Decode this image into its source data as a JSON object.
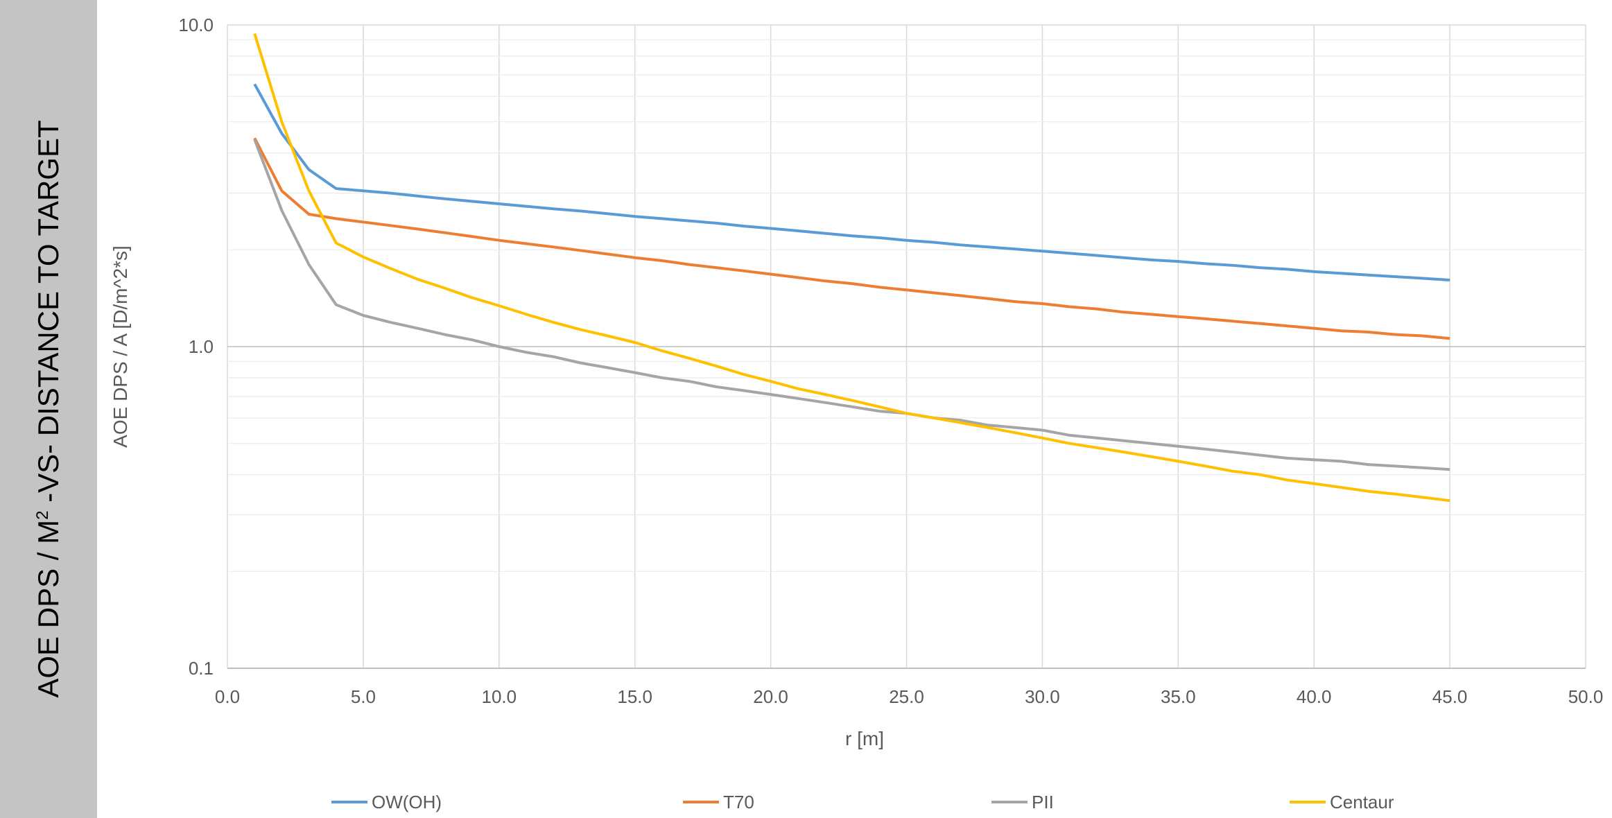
{
  "side_title": {
    "prefix": "AOE DPS / M",
    "sup": "2",
    "suffix": " -VS- DISTANCE TO TARGET"
  },
  "chart_data": {
    "type": "line",
    "title": "",
    "xlabel": "r [m]",
    "ylabel": "AOE DPS / A [D/m^2*s]",
    "xlim": [
      0,
      50
    ],
    "ylim": [
      0.1,
      10
    ],
    "y_scale": "log",
    "x_ticks": [
      "0.0",
      "5.0",
      "10.0",
      "15.0",
      "20.0",
      "25.0",
      "30.0",
      "35.0",
      "40.0",
      "45.0",
      "50.0"
    ],
    "y_ticks": [
      "0.1",
      "1.0",
      "10.0"
    ],
    "grid": true,
    "legend_position": "bottom",
    "x": [
      1,
      2,
      3,
      4,
      5,
      6,
      7,
      8,
      9,
      10,
      11,
      12,
      13,
      14,
      15,
      16,
      17,
      18,
      19,
      20,
      21,
      22,
      23,
      24,
      25,
      26,
      27,
      28,
      29,
      30,
      31,
      32,
      33,
      34,
      35,
      36,
      37,
      38,
      39,
      40,
      41,
      42,
      43,
      44,
      45
    ],
    "series": [
      {
        "name": "OW(OH)",
        "color": "#5b9bd5",
        "values": [
          6.55,
          4.6,
          3.55,
          3.1,
          3.05,
          3.0,
          2.94,
          2.88,
          2.83,
          2.78,
          2.73,
          2.68,
          2.64,
          2.59,
          2.54,
          2.5,
          2.46,
          2.42,
          2.37,
          2.33,
          2.29,
          2.25,
          2.21,
          2.18,
          2.14,
          2.11,
          2.07,
          2.04,
          2.01,
          1.98,
          1.95,
          1.92,
          1.89,
          1.86,
          1.84,
          1.81,
          1.79,
          1.76,
          1.74,
          1.71,
          1.69,
          1.67,
          1.65,
          1.63,
          1.61
        ]
      },
      {
        "name": "T70",
        "color": "#ed7d31",
        "values": [
          4.45,
          3.05,
          2.58,
          2.5,
          2.44,
          2.38,
          2.32,
          2.26,
          2.2,
          2.14,
          2.09,
          2.04,
          1.99,
          1.94,
          1.89,
          1.85,
          1.8,
          1.76,
          1.72,
          1.68,
          1.64,
          1.6,
          1.57,
          1.53,
          1.5,
          1.47,
          1.44,
          1.41,
          1.38,
          1.36,
          1.33,
          1.31,
          1.28,
          1.26,
          1.24,
          1.22,
          1.2,
          1.18,
          1.16,
          1.14,
          1.12,
          1.11,
          1.09,
          1.08,
          1.06
        ]
      },
      {
        "name": "PII",
        "color": "#a5a5a5",
        "values": [
          4.4,
          2.65,
          1.8,
          1.35,
          1.25,
          1.19,
          1.14,
          1.09,
          1.05,
          1.0,
          0.96,
          0.93,
          0.89,
          0.86,
          0.83,
          0.8,
          0.78,
          0.75,
          0.73,
          0.71,
          0.69,
          0.67,
          0.65,
          0.63,
          0.62,
          0.6,
          0.59,
          0.57,
          0.56,
          0.55,
          0.53,
          0.52,
          0.51,
          0.5,
          0.49,
          0.48,
          0.47,
          0.46,
          0.45,
          0.445,
          0.44,
          0.43,
          0.425,
          0.42,
          0.415
        ]
      },
      {
        "name": "Centaur",
        "color": "#ffc000",
        "values": [
          9.4,
          5.0,
          3.05,
          2.1,
          1.9,
          1.75,
          1.62,
          1.52,
          1.42,
          1.34,
          1.26,
          1.19,
          1.13,
          1.08,
          1.03,
          0.97,
          0.92,
          0.87,
          0.82,
          0.78,
          0.74,
          0.71,
          0.68,
          0.65,
          0.62,
          0.6,
          0.58,
          0.56,
          0.54,
          0.52,
          0.5,
          0.485,
          0.47,
          0.455,
          0.44,
          0.425,
          0.41,
          0.4,
          0.385,
          0.375,
          0.365,
          0.355,
          0.348,
          0.34,
          0.332
        ]
      }
    ]
  }
}
